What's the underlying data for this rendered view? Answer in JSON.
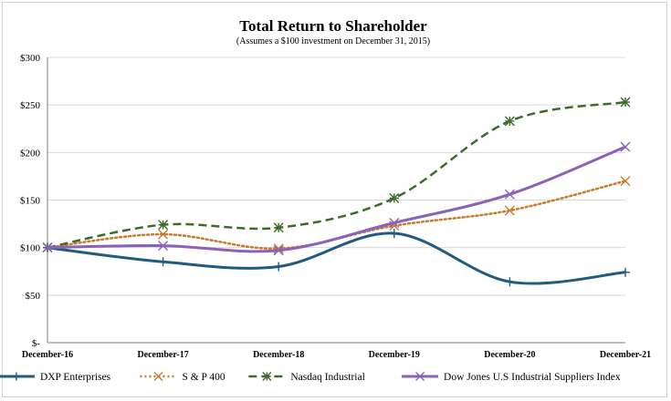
{
  "chart_data": {
    "type": "line",
    "title": "Total Return to Shareholder",
    "subtitle": "(Assumes a $100 investment on December 31, 2015)",
    "categories": [
      "December-16",
      "December-17",
      "December-18",
      "December-19",
      "December-20",
      "December-21"
    ],
    "y_tick_labels": [
      "$-",
      "$50",
      "$100",
      "$150",
      "$200",
      "$250",
      "$300"
    ],
    "y_tick_values": [
      0,
      50,
      100,
      150,
      200,
      250,
      300
    ],
    "ylim": [
      0,
      300
    ],
    "grid": "horizontal",
    "legend_position": "bottom",
    "series": [
      {
        "name": "DXP Enterprises",
        "color": "#1f5c80",
        "style": "solid",
        "marker": "plus",
        "values": [
          100,
          85,
          80,
          115,
          64,
          74
        ]
      },
      {
        "name": "S & P 400",
        "color": "#c77b2b",
        "style": "dotted",
        "marker": "x",
        "values": [
          100,
          114,
          99,
          123,
          139,
          170
        ]
      },
      {
        "name": "Nasdaq Industrial",
        "color": "#3c6b2a",
        "style": "dashed",
        "marker": "star",
        "values": [
          100,
          124,
          121,
          152,
          233,
          253
        ]
      },
      {
        "name": "Dow Jones U.S Industrial Suppliers Index",
        "color": "#8a63b8",
        "style": "solid",
        "marker": "x",
        "values": [
          100,
          102,
          97,
          126,
          156,
          206
        ]
      }
    ]
  }
}
